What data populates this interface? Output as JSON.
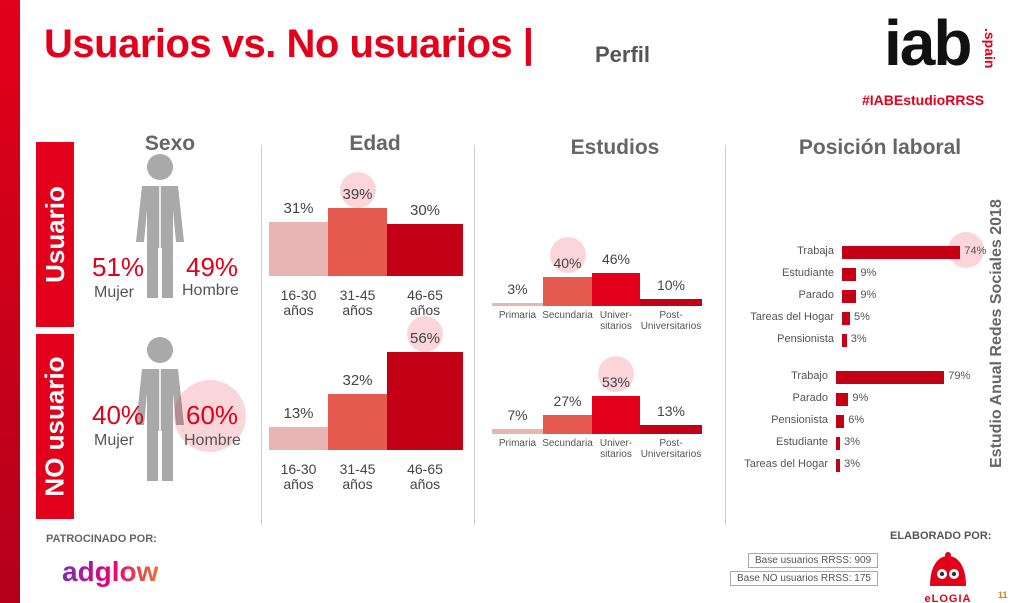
{
  "header": {
    "title": "Usuarios vs. No usuarios |",
    "subtitle": "Perfil",
    "logo_main": "iab",
    "logo_sub": ".spain",
    "hashtag": "#IABEstudioRRSS"
  },
  "rows": {
    "usuario": "Usuario",
    "no_usuario": "NO usuario"
  },
  "side_label": "Estudio Anual Redes Sociales 2018",
  "footer": {
    "sponsor_label": "PATROCINADO POR:",
    "sponsor_name": "adglow",
    "made_label": "ELABORADO POR:",
    "base_usuarios": "Base usuarios RRSS: 909",
    "base_no_usuarios": "Base NO usuarios RRSS: 175",
    "agency": "eLOGIA",
    "page_number": "11"
  },
  "colors": {
    "brand_red": "#e2001a",
    "dark_red": "#c40016",
    "mid_red": "#e55a4f",
    "light_pink": "#e8b4b4"
  },
  "chart_data": [
    {
      "type": "table",
      "title": "Sexo",
      "categories": [
        "Mujer",
        "Hombre"
      ],
      "series": [
        {
          "name": "Usuario",
          "values": [
            51,
            49
          ],
          "labels": [
            "51%",
            "49%"
          ]
        },
        {
          "name": "NO usuario",
          "values": [
            40,
            60
          ],
          "labels": [
            "40%",
            "60%"
          ]
        }
      ]
    },
    {
      "type": "bar",
      "title": "Edad",
      "categories": [
        "16-30\naños",
        "31-45\naños",
        "46-65\naños"
      ],
      "series": [
        {
          "name": "Usuario",
          "values": [
            31,
            39,
            30
          ],
          "labels": [
            "31%",
            "39%",
            "30%"
          ]
        },
        {
          "name": "NO usuario",
          "values": [
            13,
            32,
            56
          ],
          "labels": [
            "13%",
            "32%",
            "56%"
          ]
        }
      ]
    },
    {
      "type": "bar",
      "title": "Estudios",
      "categories": [
        "Primaria",
        "Secundaria",
        "Univer-\nsitarios",
        "Post-\nUniversitarios"
      ],
      "series": [
        {
          "name": "Usuario",
          "values": [
            3,
            40,
            46,
            10
          ],
          "labels": [
            "3%",
            "40%",
            "46%",
            "10%"
          ]
        },
        {
          "name": "NO usuario",
          "values": [
            7,
            27,
            53,
            13
          ],
          "labels": [
            "7%",
            "27%",
            "53%",
            "13%"
          ]
        }
      ]
    },
    {
      "type": "bar",
      "title": "Posición laboral",
      "series": [
        {
          "name": "Usuario",
          "categories": [
            "Trabaja",
            "Estudiante",
            "Parado",
            "Tareas del Hogar",
            "Pensionista"
          ],
          "values": [
            74,
            9,
            9,
            5,
            3
          ],
          "labels": [
            "74%",
            "9%",
            "9%",
            "5%",
            "3%"
          ]
        },
        {
          "name": "NO usuario",
          "categories": [
            "Trabajo",
            "Parado",
            "Pensionista",
            "Estudiante",
            "Tareas del Hogar"
          ],
          "values": [
            79,
            9,
            6,
            3,
            3
          ],
          "labels": [
            "79%",
            "9%",
            "6%",
            "3%",
            "3%"
          ]
        }
      ]
    }
  ]
}
